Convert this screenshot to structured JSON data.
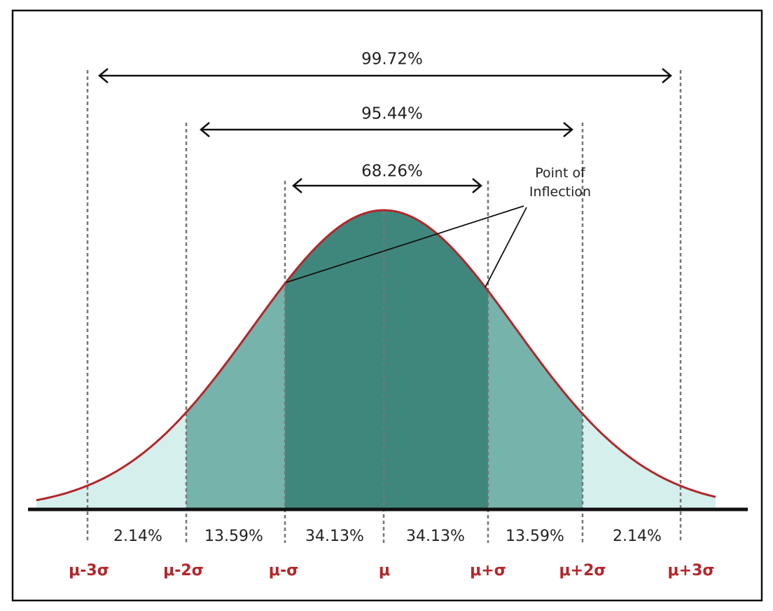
{
  "ranges": [
    {
      "label": "99.72%"
    },
    {
      "label": "95.44%"
    },
    {
      "label": "68.26%"
    }
  ],
  "annotation": {
    "label": "Point of Inflection"
  },
  "segments": [
    "2.14%",
    "13.59%",
    "34.13%",
    "34.13%",
    "13.59%",
    "2.14%"
  ],
  "axis_labels": [
    "μ-3σ",
    "μ-2σ",
    "μ-σ",
    "μ",
    "μ+σ",
    "μ+2σ",
    "μ+3σ"
  ]
}
